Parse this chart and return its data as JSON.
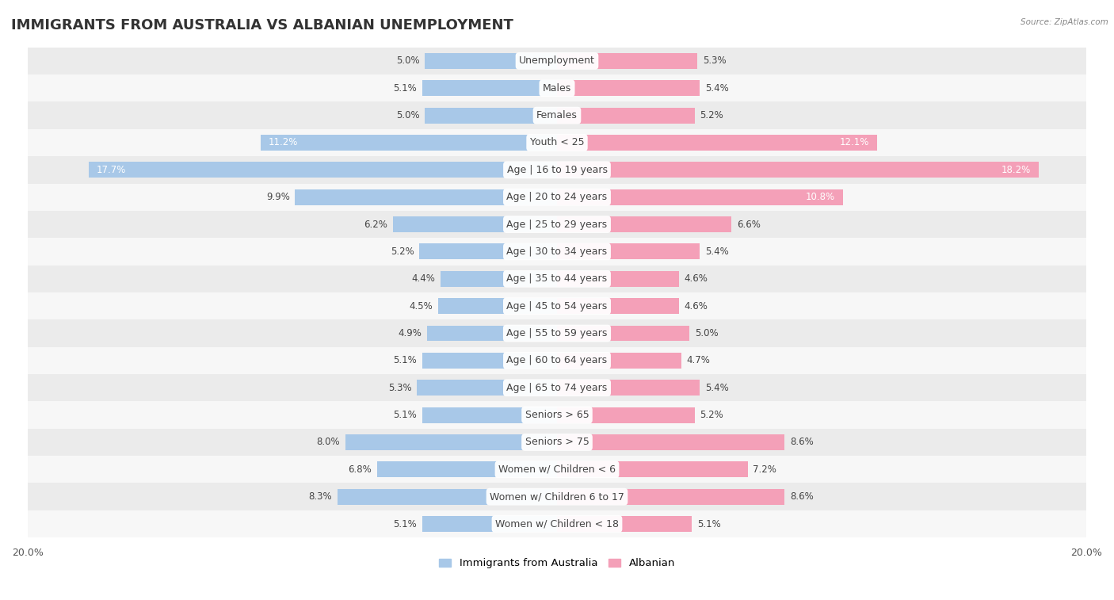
{
  "title": "IMMIGRANTS FROM AUSTRALIA VS ALBANIAN UNEMPLOYMENT",
  "source": "Source: ZipAtlas.com",
  "categories": [
    "Unemployment",
    "Males",
    "Females",
    "Youth < 25",
    "Age | 16 to 19 years",
    "Age | 20 to 24 years",
    "Age | 25 to 29 years",
    "Age | 30 to 34 years",
    "Age | 35 to 44 years",
    "Age | 45 to 54 years",
    "Age | 55 to 59 years",
    "Age | 60 to 64 years",
    "Age | 65 to 74 years",
    "Seniors > 65",
    "Seniors > 75",
    "Women w/ Children < 6",
    "Women w/ Children 6 to 17",
    "Women w/ Children < 18"
  ],
  "left_values": [
    5.0,
    5.1,
    5.0,
    11.2,
    17.7,
    9.9,
    6.2,
    5.2,
    4.4,
    4.5,
    4.9,
    5.1,
    5.3,
    5.1,
    8.0,
    6.8,
    8.3,
    5.1
  ],
  "right_values": [
    5.3,
    5.4,
    5.2,
    12.1,
    18.2,
    10.8,
    6.6,
    5.4,
    4.6,
    4.6,
    5.0,
    4.7,
    5.4,
    5.2,
    8.6,
    7.2,
    8.6,
    5.1
  ],
  "left_color": "#a8c8e8",
  "right_color": "#f4a0b8",
  "bar_height": 0.58,
  "xlim": 20.0,
  "row_color_even": "#ebebeb",
  "row_color_odd": "#f7f7f7",
  "title_fontsize": 13,
  "label_fontsize": 9,
  "value_fontsize": 8.5,
  "legend_left": "Immigrants from Australia",
  "legend_right": "Albanian",
  "white_label_indices": [
    3,
    4
  ],
  "white_label_threshold": 10.0
}
